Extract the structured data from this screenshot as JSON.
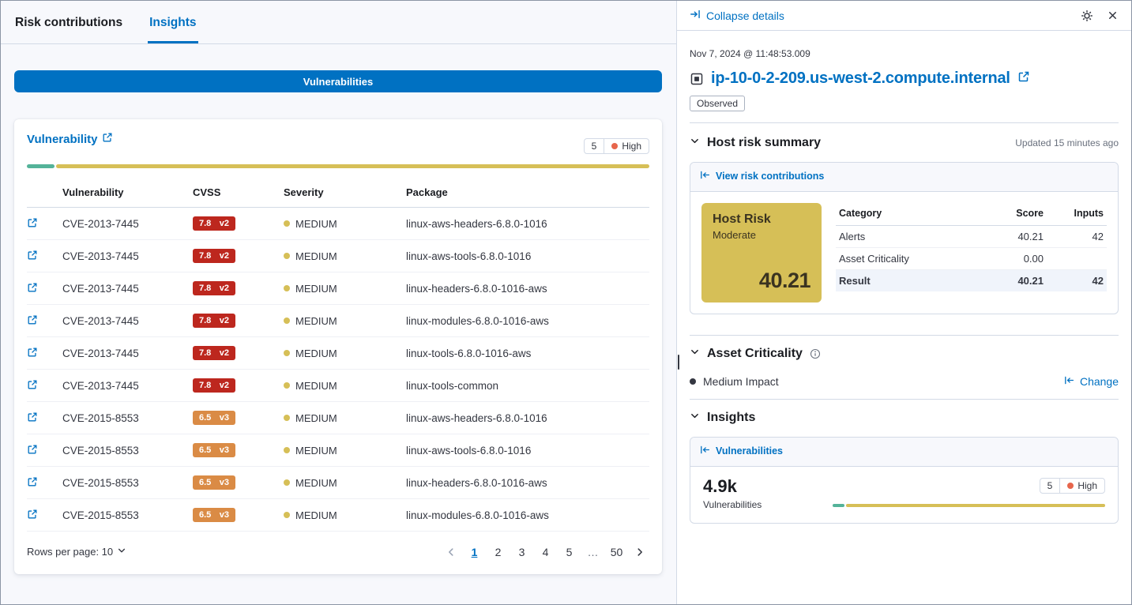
{
  "colors": {
    "primary_blue": "#0071c2",
    "risk_yellow": "#d6bf57",
    "bar_teal": "#54b399",
    "cvss_red": "#bd271e",
    "cvss_orange": "#da8b45",
    "high_dot": "#e7664c"
  },
  "left": {
    "tabs": [
      {
        "label": "Risk contributions"
      },
      {
        "label": "Insights"
      }
    ],
    "vulnerabilities_button": "Vulnerabilities",
    "card": {
      "title": "Vulnerability",
      "badge": {
        "count": "5",
        "label": "High"
      },
      "bar": {
        "segments": [
          {
            "color": "#54b399",
            "pct": 4.5
          },
          {
            "color": "#d6bf57",
            "pct": 95.5
          }
        ]
      },
      "table": {
        "headers": [
          "Vulnerability",
          "CVSS",
          "Severity",
          "Package"
        ],
        "rows": [
          {
            "cve": "CVE-2013-7445",
            "score": "7.8",
            "version": "v2",
            "badge_color": "#bd271e",
            "severity": "MEDIUM",
            "package": "linux-aws-headers-6.8.0-1016"
          },
          {
            "cve": "CVE-2013-7445",
            "score": "7.8",
            "version": "v2",
            "badge_color": "#bd271e",
            "severity": "MEDIUM",
            "package": "linux-aws-tools-6.8.0-1016"
          },
          {
            "cve": "CVE-2013-7445",
            "score": "7.8",
            "version": "v2",
            "badge_color": "#bd271e",
            "severity": "MEDIUM",
            "package": "linux-headers-6.8.0-1016-aws"
          },
          {
            "cve": "CVE-2013-7445",
            "score": "7.8",
            "version": "v2",
            "badge_color": "#bd271e",
            "severity": "MEDIUM",
            "package": "linux-modules-6.8.0-1016-aws"
          },
          {
            "cve": "CVE-2013-7445",
            "score": "7.8",
            "version": "v2",
            "badge_color": "#bd271e",
            "severity": "MEDIUM",
            "package": "linux-tools-6.8.0-1016-aws"
          },
          {
            "cve": "CVE-2013-7445",
            "score": "7.8",
            "version": "v2",
            "badge_color": "#bd271e",
            "severity": "MEDIUM",
            "package": "linux-tools-common"
          },
          {
            "cve": "CVE-2015-8553",
            "score": "6.5",
            "version": "v3",
            "badge_color": "#da8b45",
            "severity": "MEDIUM",
            "package": "linux-aws-headers-6.8.0-1016"
          },
          {
            "cve": "CVE-2015-8553",
            "score": "6.5",
            "version": "v3",
            "badge_color": "#da8b45",
            "severity": "MEDIUM",
            "package": "linux-aws-tools-6.8.0-1016"
          },
          {
            "cve": "CVE-2015-8553",
            "score": "6.5",
            "version": "v3",
            "badge_color": "#da8b45",
            "severity": "MEDIUM",
            "package": "linux-headers-6.8.0-1016-aws"
          },
          {
            "cve": "CVE-2015-8553",
            "score": "6.5",
            "version": "v3",
            "badge_color": "#da8b45",
            "severity": "MEDIUM",
            "package": "linux-modules-6.8.0-1016-aws"
          }
        ]
      },
      "footer": {
        "rows_per_page": "Rows per page: 10",
        "pages": [
          "1",
          "2",
          "3",
          "4",
          "5",
          "…",
          "50"
        ],
        "active_page": "1"
      }
    }
  },
  "flyout": {
    "collapse_label": "Collapse details",
    "timestamp": "Nov 7, 2024 @ 11:48:53.009",
    "host_name": "ip-10-0-2-209.us-west-2.compute.internal",
    "observed_label": "Observed",
    "host_risk": {
      "heading": "Host risk summary",
      "updated": "Updated 15 minutes ago",
      "link": "View risk contributions",
      "score_card": {
        "title": "Host Risk",
        "level": "Moderate",
        "score": "40.21"
      },
      "table": {
        "headers": [
          "Category",
          "Score",
          "Inputs"
        ],
        "rows": [
          {
            "category": "Alerts",
            "score": "40.21",
            "inputs": "42"
          },
          {
            "category": "Asset Criticality",
            "score": "0.00",
            "inputs": ""
          },
          {
            "category": "Result",
            "score": "40.21",
            "inputs": "42"
          }
        ]
      }
    },
    "asset_criticality": {
      "heading": "Asset Criticality",
      "value": "Medium Impact",
      "change_label": "Change"
    },
    "insights": {
      "heading": "Insights",
      "link": "Vulnerabilities",
      "count": "4.9k",
      "count_label": "Vulnerabilities",
      "badge": {
        "count": "5",
        "label": "High"
      },
      "bar": {
        "segments": [
          {
            "color": "#54b399",
            "pct": 4.5
          },
          {
            "color": "#d6bf57",
            "pct": 95.5
          }
        ]
      }
    }
  }
}
